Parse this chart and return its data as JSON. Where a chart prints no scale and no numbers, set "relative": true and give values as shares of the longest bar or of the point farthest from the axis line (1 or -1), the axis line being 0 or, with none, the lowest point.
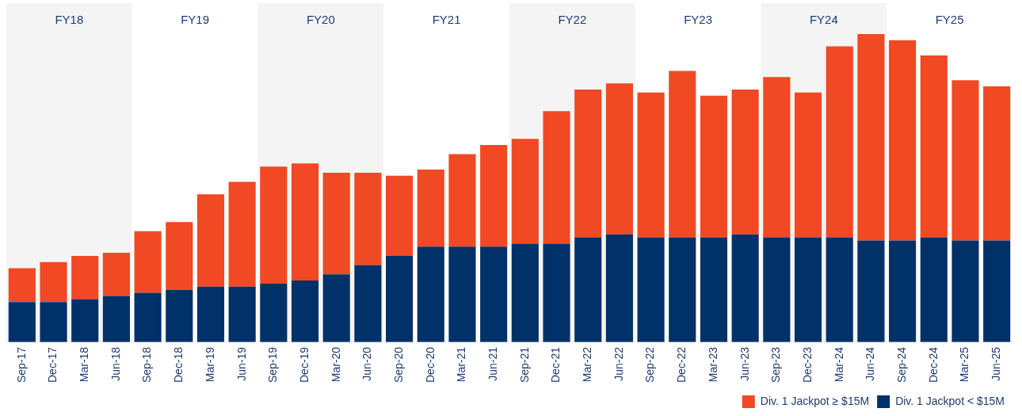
{
  "chart_data": {
    "type": "bar",
    "stacked": true,
    "relative": true,
    "grid": false,
    "legend": "bottom right",
    "categories": [
      "Sep-17",
      "Dec-17",
      "Mar-18",
      "Jun-18",
      "Sep-18",
      "Dec-18",
      "Mar-19",
      "Jun-19",
      "Sep-19",
      "Dec-19",
      "Mar-20",
      "Jun-20",
      "Sep-20",
      "Dec-20",
      "Mar-21",
      "Jun-21",
      "Sep-21",
      "Dec-21",
      "Mar-22",
      "Jun-22",
      "Sep-22",
      "Dec-22",
      "Mar-23",
      "Jun-23",
      "Sep-23",
      "Dec-23",
      "Mar-24",
      "Jun-24",
      "Sep-24",
      "Dec-24",
      "Mar-25",
      "Jun-25"
    ],
    "series": [
      {
        "name": "Div. 1 Jackpot < $15M",
        "color": "#003168",
        "values": [
          0.13,
          0.13,
          0.14,
          0.15,
          0.16,
          0.17,
          0.18,
          0.18,
          0.19,
          0.2,
          0.22,
          0.25,
          0.28,
          0.31,
          0.31,
          0.31,
          0.32,
          0.32,
          0.34,
          0.35,
          0.34,
          0.34,
          0.34,
          0.35,
          0.34,
          0.34,
          0.34,
          0.33,
          0.33,
          0.34,
          0.33,
          0.33
        ]
      },
      {
        "name": "Div. 1 Jackpot ≥ $15M",
        "color": "#f04923",
        "values": [
          0.11,
          0.13,
          0.14,
          0.14,
          0.2,
          0.22,
          0.3,
          0.34,
          0.38,
          0.38,
          0.33,
          0.3,
          0.26,
          0.25,
          0.3,
          0.33,
          0.34,
          0.43,
          0.48,
          0.49,
          0.47,
          0.54,
          0.46,
          0.47,
          0.52,
          0.47,
          0.62,
          0.67,
          0.65,
          0.59,
          0.52,
          0.5
        ]
      }
    ],
    "bands": [
      {
        "axis": "x",
        "from": "Sep-17",
        "to": "Jun-18",
        "label": "FY18",
        "color": "#f4f4f4"
      },
      {
        "axis": "x",
        "from": "Sep-18",
        "to": "Jun-19",
        "label": "FY19",
        "color": "#ffffff"
      },
      {
        "axis": "x",
        "from": "Sep-19",
        "to": "Jun-20",
        "label": "FY20",
        "color": "#f4f4f4"
      },
      {
        "axis": "x",
        "from": "Sep-20",
        "to": "Jun-21",
        "label": "FY21",
        "color": "#ffffff"
      },
      {
        "axis": "x",
        "from": "Sep-21",
        "to": "Jun-22",
        "label": "FY22",
        "color": "#f4f4f4"
      },
      {
        "axis": "x",
        "from": "Sep-22",
        "to": "Jun-23",
        "label": "FY23",
        "color": "#ffffff"
      },
      {
        "axis": "x",
        "from": "Sep-23",
        "to": "Jun-24",
        "label": "FY24",
        "color": "#f4f4f4"
      },
      {
        "axis": "x",
        "from": "Sep-24",
        "to": "Jun-25",
        "label": "FY25",
        "color": "#ffffff"
      }
    ]
  }
}
